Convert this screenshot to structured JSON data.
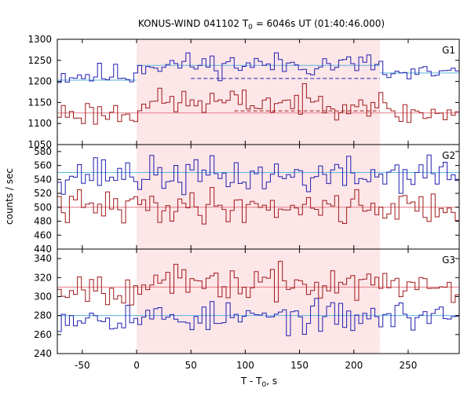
{
  "chart_data": {
    "type": "line",
    "title_main": "KONUS-WIND 041102 T",
    "title_sub": "0",
    "title_rest": " = 6046s UT (01:40:46.000)",
    "xlabel_main": "T - T",
    "xlabel_sub": "0",
    "xlabel_rest": ", s",
    "ylabel": "counts / sec",
    "xlim": [
      -73,
      297
    ],
    "x_ticks": [
      -50,
      0,
      50,
      100,
      150,
      200,
      250
    ],
    "shaded_interval": [
      0,
      224
    ],
    "colors": {
      "blue": "#1f1fb0",
      "red": "#a01818",
      "blue_bg": "#5ab4e0",
      "red_bg": "#e07a86",
      "shade": "#fde6e8"
    },
    "panels": [
      {
        "label": "G1",
        "ylim": [
          1050,
          1300
        ],
        "y_ticks": [
          1050,
          1100,
          1150,
          1200,
          1250,
          1300
        ],
        "series": [
          {
            "color_key": "blue",
            "seed": 11,
            "mean_outside": 1215,
            "mean_inside": 1240,
            "noise": 14
          },
          {
            "color_key": "red",
            "seed": 23,
            "mean_outside": 1125,
            "mean_inside": 1150,
            "noise": 16
          }
        ],
        "bg_lines": [
          {
            "color_key": "blue_bg",
            "value": 1203,
            "x": [
              -73,
              0
            ],
            "dashed": false
          },
          {
            "color_key": "blue_bg",
            "value": 1238,
            "x": [
              0,
              224
            ],
            "dashed": false
          },
          {
            "color_key": "blue_bg",
            "value": 1220,
            "x": [
              224,
              297
            ],
            "dashed": false
          },
          {
            "color_key": "red_bg",
            "value": 1125,
            "x": [
              -73,
              297
            ],
            "dashed": false
          },
          {
            "color_key": "blue",
            "value": 1207,
            "x": [
              50,
              224
            ],
            "dashed": true
          },
          {
            "color_key": "red",
            "value": 1130,
            "x": [
              90,
              224
            ],
            "dashed": true
          }
        ]
      },
      {
        "label": "G2",
        "ylim": [
          440,
          590
        ],
        "y_ticks": [
          440,
          460,
          480,
          500,
          520,
          540,
          560,
          580
        ],
        "series": [
          {
            "color_key": "blue",
            "seed": 37,
            "mean_outside": 548,
            "mean_inside": 545,
            "noise": 13
          },
          {
            "color_key": "red",
            "seed": 41,
            "mean_outside": 500,
            "mean_inside": 502,
            "noise": 12
          }
        ],
        "bg_lines": [
          {
            "color_key": "blue_bg",
            "value": 550,
            "x": [
              -73,
              297
            ],
            "dashed": false
          },
          {
            "color_key": "red_bg",
            "value": 500,
            "x": [
              -73,
              297
            ],
            "dashed": false
          }
        ]
      },
      {
        "label": "G3",
        "ylim": [
          240,
          350
        ],
        "y_ticks": [
          240,
          260,
          280,
          300,
          320,
          340
        ],
        "series": [
          {
            "color_key": "blue",
            "seed": 53,
            "mean_outside": 280,
            "mean_inside": 278,
            "noise": 8
          },
          {
            "color_key": "red",
            "seed": 67,
            "mean_outside": 311,
            "mean_inside": 313,
            "noise": 9
          }
        ],
        "bg_lines": [
          {
            "color_key": "blue_bg",
            "value": 280,
            "x": [
              -73,
              297
            ],
            "dashed": false
          },
          {
            "color_key": "red_bg",
            "value": 310,
            "x": [
              -73,
              297
            ],
            "dashed": false
          }
        ]
      }
    ]
  }
}
